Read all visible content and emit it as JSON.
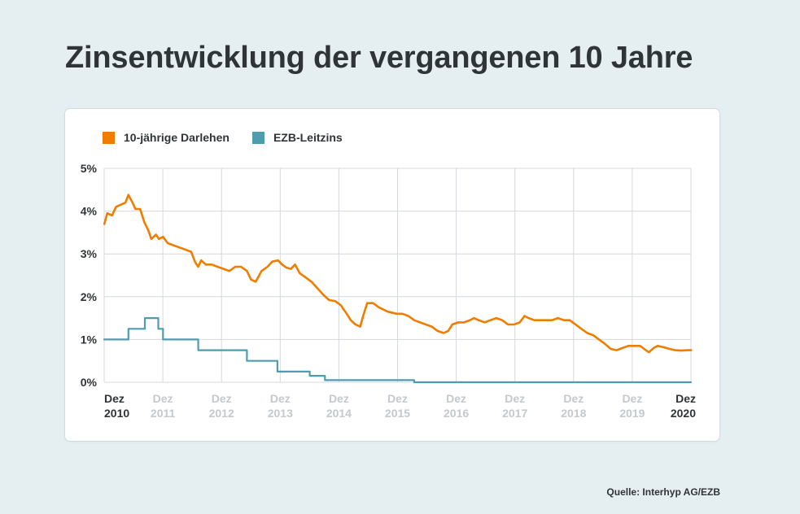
{
  "title": "Zinsentwicklung der vergangenen 10 Jahre",
  "source": "Quelle: Interhyp AG/EZB",
  "chart_data": {
    "type": "line",
    "ylim": [
      0,
      5
    ],
    "y_ticks": [
      "0%",
      "1%",
      "2%",
      "3%",
      "4%",
      "5%"
    ],
    "x_range": [
      2010.917,
      2020.917
    ],
    "x_ticks": [
      {
        "top": "Dez",
        "bottom": "2010",
        "x": 2010.917,
        "emph": true
      },
      {
        "top": "Dez",
        "bottom": "2011",
        "x": 2011.917,
        "emph": false
      },
      {
        "top": "Dez",
        "bottom": "2012",
        "x": 2012.917,
        "emph": false
      },
      {
        "top": "Dez",
        "bottom": "2013",
        "x": 2013.917,
        "emph": false
      },
      {
        "top": "Dez",
        "bottom": "2014",
        "x": 2014.917,
        "emph": false
      },
      {
        "top": "Dez",
        "bottom": "2015",
        "x": 2015.917,
        "emph": false
      },
      {
        "top": "Dez",
        "bottom": "2016",
        "x": 2016.917,
        "emph": false
      },
      {
        "top": "Dez",
        "bottom": "2017",
        "x": 2017.917,
        "emph": false
      },
      {
        "top": "Dez",
        "bottom": "2018",
        "x": 2018.917,
        "emph": false
      },
      {
        "top": "Dez",
        "bottom": "2019",
        "x": 2019.917,
        "emph": false
      },
      {
        "top": "Dez",
        "bottom": "2020",
        "x": 2020.917,
        "emph": true
      }
    ],
    "series": [
      {
        "name": "10-jährige Darlehen",
        "color": "#ef7d00",
        "step": false,
        "points": [
          [
            2010.92,
            3.7
          ],
          [
            2010.97,
            3.95
          ],
          [
            2011.05,
            3.9
          ],
          [
            2011.12,
            4.1
          ],
          [
            2011.2,
            4.15
          ],
          [
            2011.28,
            4.2
          ],
          [
            2011.33,
            4.38
          ],
          [
            2011.4,
            4.2
          ],
          [
            2011.45,
            4.05
          ],
          [
            2011.53,
            4.05
          ],
          [
            2011.6,
            3.75
          ],
          [
            2011.67,
            3.55
          ],
          [
            2011.72,
            3.35
          ],
          [
            2011.8,
            3.45
          ],
          [
            2011.85,
            3.35
          ],
          [
            2011.92,
            3.4
          ],
          [
            2012.0,
            3.25
          ],
          [
            2012.1,
            3.2
          ],
          [
            2012.2,
            3.15
          ],
          [
            2012.3,
            3.1
          ],
          [
            2012.4,
            3.05
          ],
          [
            2012.47,
            2.8
          ],
          [
            2012.52,
            2.7
          ],
          [
            2012.57,
            2.85
          ],
          [
            2012.65,
            2.75
          ],
          [
            2012.75,
            2.75
          ],
          [
            2012.85,
            2.7
          ],
          [
            2012.95,
            2.65
          ],
          [
            2013.05,
            2.6
          ],
          [
            2013.15,
            2.7
          ],
          [
            2013.25,
            2.7
          ],
          [
            2013.35,
            2.6
          ],
          [
            2013.42,
            2.4
          ],
          [
            2013.5,
            2.35
          ],
          [
            2013.6,
            2.6
          ],
          [
            2013.7,
            2.7
          ],
          [
            2013.78,
            2.82
          ],
          [
            2013.88,
            2.85
          ],
          [
            2013.95,
            2.75
          ],
          [
            2014.02,
            2.68
          ],
          [
            2014.1,
            2.65
          ],
          [
            2014.17,
            2.75
          ],
          [
            2014.25,
            2.55
          ],
          [
            2014.35,
            2.45
          ],
          [
            2014.45,
            2.35
          ],
          [
            2014.55,
            2.2
          ],
          [
            2014.65,
            2.05
          ],
          [
            2014.75,
            1.92
          ],
          [
            2014.85,
            1.9
          ],
          [
            2014.95,
            1.8
          ],
          [
            2015.05,
            1.6
          ],
          [
            2015.12,
            1.45
          ],
          [
            2015.2,
            1.35
          ],
          [
            2015.28,
            1.3
          ],
          [
            2015.33,
            1.55
          ],
          [
            2015.4,
            1.85
          ],
          [
            2015.5,
            1.85
          ],
          [
            2015.6,
            1.75
          ],
          [
            2015.75,
            1.65
          ],
          [
            2015.9,
            1.6
          ],
          [
            2016.0,
            1.6
          ],
          [
            2016.1,
            1.55
          ],
          [
            2016.2,
            1.45
          ],
          [
            2016.3,
            1.4
          ],
          [
            2016.4,
            1.35
          ],
          [
            2016.5,
            1.3
          ],
          [
            2016.6,
            1.2
          ],
          [
            2016.7,
            1.15
          ],
          [
            2016.78,
            1.2
          ],
          [
            2016.85,
            1.35
          ],
          [
            2016.95,
            1.4
          ],
          [
            2017.05,
            1.4
          ],
          [
            2017.15,
            1.45
          ],
          [
            2017.22,
            1.5
          ],
          [
            2017.3,
            1.45
          ],
          [
            2017.4,
            1.4
          ],
          [
            2017.5,
            1.45
          ],
          [
            2017.6,
            1.5
          ],
          [
            2017.7,
            1.45
          ],
          [
            2017.8,
            1.35
          ],
          [
            2017.9,
            1.35
          ],
          [
            2018.0,
            1.4
          ],
          [
            2018.08,
            1.55
          ],
          [
            2018.15,
            1.5
          ],
          [
            2018.25,
            1.45
          ],
          [
            2018.35,
            1.45
          ],
          [
            2018.45,
            1.45
          ],
          [
            2018.55,
            1.45
          ],
          [
            2018.65,
            1.5
          ],
          [
            2018.75,
            1.45
          ],
          [
            2018.85,
            1.45
          ],
          [
            2018.95,
            1.35
          ],
          [
            2019.05,
            1.25
          ],
          [
            2019.15,
            1.15
          ],
          [
            2019.25,
            1.1
          ],
          [
            2019.35,
            1.0
          ],
          [
            2019.45,
            0.9
          ],
          [
            2019.55,
            0.78
          ],
          [
            2019.65,
            0.75
          ],
          [
            2019.75,
            0.8
          ],
          [
            2019.85,
            0.85
          ],
          [
            2019.95,
            0.85
          ],
          [
            2020.05,
            0.85
          ],
          [
            2020.12,
            0.78
          ],
          [
            2020.2,
            0.7
          ],
          [
            2020.28,
            0.8
          ],
          [
            2020.35,
            0.85
          ],
          [
            2020.45,
            0.82
          ],
          [
            2020.55,
            0.78
          ],
          [
            2020.65,
            0.75
          ],
          [
            2020.75,
            0.74
          ],
          [
            2020.85,
            0.75
          ],
          [
            2020.92,
            0.75
          ]
        ]
      },
      {
        "name": "EZB-Leitzins",
        "color": "#4e9cae",
        "step": true,
        "points": [
          [
            2010.917,
            1.0
          ],
          [
            2011.33,
            1.25
          ],
          [
            2011.61,
            1.5
          ],
          [
            2011.84,
            1.25
          ],
          [
            2011.92,
            1.0
          ],
          [
            2012.52,
            0.75
          ],
          [
            2013.35,
            0.5
          ],
          [
            2013.87,
            0.25
          ],
          [
            2014.42,
            0.15
          ],
          [
            2014.68,
            0.05
          ],
          [
            2016.2,
            0.0
          ],
          [
            2020.917,
            0.0
          ]
        ]
      }
    ]
  }
}
